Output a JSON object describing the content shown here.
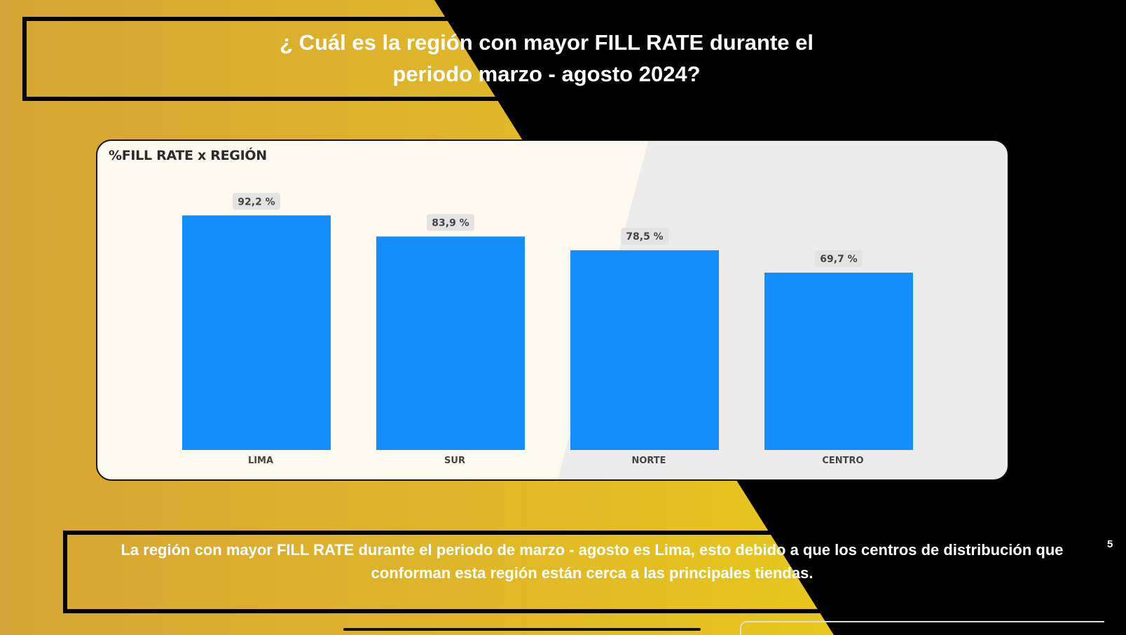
{
  "title": {
    "line1": "¿ Cuál es la región con mayor FILL RATE durante el",
    "line2": "periodo marzo - agosto 2024?"
  },
  "card": {
    "title": "%FILL RATE x REGIÓN"
  },
  "chart_data": {
    "type": "bar",
    "title": "%FILL RATE x REGIÓN",
    "categories": [
      "LIMA",
      "SUR",
      "NORTE",
      "CENTRO"
    ],
    "values": [
      92.2,
      83.9,
      78.5,
      69.7
    ],
    "labels": [
      "92,2 %",
      "83,9 %",
      "78,5 %",
      "69,7 %"
    ],
    "ylim": [
      0,
      100
    ],
    "grid": false,
    "bar_color": "#148efe"
  },
  "footer": {
    "line1": "La región con mayor FILL RATE durante el periodo de marzo - agosto es Lima, esto debido a que los centros de distribución que",
    "line2": "conforman esta región están cerca a las principales tiendas."
  },
  "page_number": "5",
  "colors": {
    "gold": "#dfb52a",
    "dark": "#000000",
    "bar": "#148efe"
  }
}
